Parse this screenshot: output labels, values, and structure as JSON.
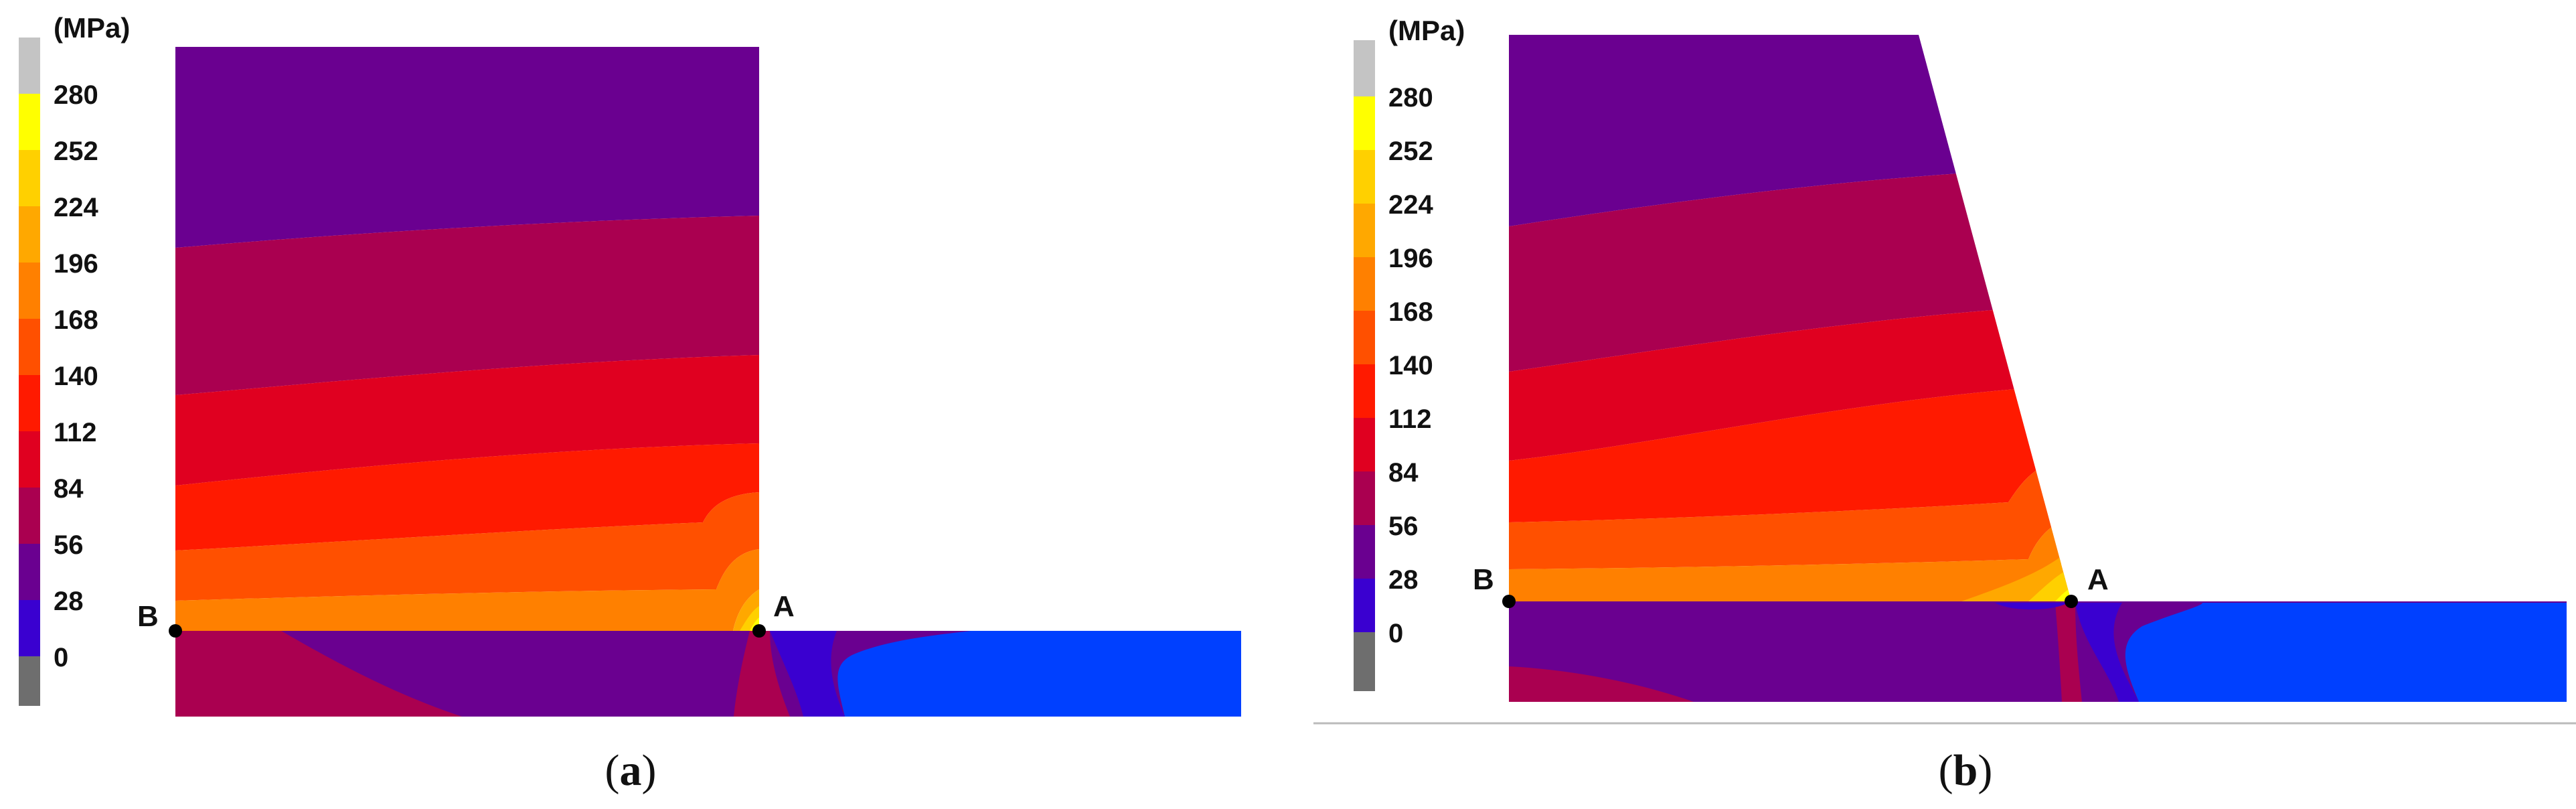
{
  "colors": {
    "c_over": "#c4c4c4",
    "c_280": "#ffff00",
    "c_252": "#ffd000",
    "c_224": "#ffa800",
    "c_196": "#ff8000",
    "c_168": "#ff5000",
    "c_140": "#ff1a00",
    "c_112": "#e00020",
    "c_84": "#aa0050",
    "c_56": "#6a0090",
    "c_28": "#3a00d0",
    "c_0": "#0040ff",
    "c_under": "#6e6e6e"
  },
  "legend": {
    "unit": "(MPa)",
    "ticks": [
      "280",
      "252",
      "224",
      "196",
      "168",
      "140",
      "112",
      "84",
      "56",
      "28",
      "0"
    ]
  },
  "panels": [
    {
      "caption_open": "(",
      "caption_letter": "a",
      "caption_close": ")",
      "point_a": "A",
      "point_b": "B"
    },
    {
      "caption_open": "(",
      "caption_letter": "b",
      "caption_close": ")",
      "point_a": "A",
      "point_b": "B"
    }
  ]
}
